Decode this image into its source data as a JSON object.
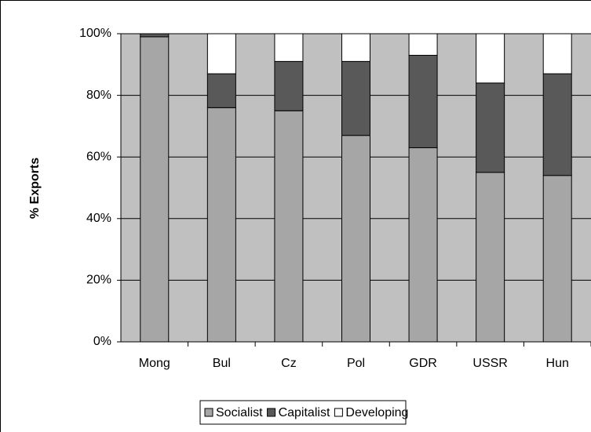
{
  "chart_data": {
    "type": "stacked-bar",
    "y_label": "% Exports",
    "categories": [
      "Mong",
      "Bul",
      "Cz",
      "Pol",
      "GDR",
      "USSR",
      "Hun"
    ],
    "series": [
      {
        "name": "Socialist",
        "color": "#a6a6a6",
        "values": [
          99,
          76,
          75,
          67,
          63,
          55,
          54
        ]
      },
      {
        "name": "Capitalist",
        "color": "#595959",
        "values": [
          1,
          11,
          16,
          24,
          30,
          29,
          33
        ]
      },
      {
        "name": "Developing",
        "color": "#ffffff",
        "values": [
          0,
          13,
          9,
          9,
          7,
          16,
          13
        ]
      }
    ],
    "ylim": [
      0,
      100
    ],
    "yticks": [
      {
        "value": 0,
        "label": "0%"
      },
      {
        "value": 20,
        "label": "20%"
      },
      {
        "value": 40,
        "label": "40%"
      },
      {
        "value": 60,
        "label": "60%"
      },
      {
        "value": 80,
        "label": "80%"
      },
      {
        "value": 100,
        "label": "100%"
      }
    ],
    "grid": true,
    "plot_background": "#c0c0c0",
    "legend": "bottom"
  }
}
